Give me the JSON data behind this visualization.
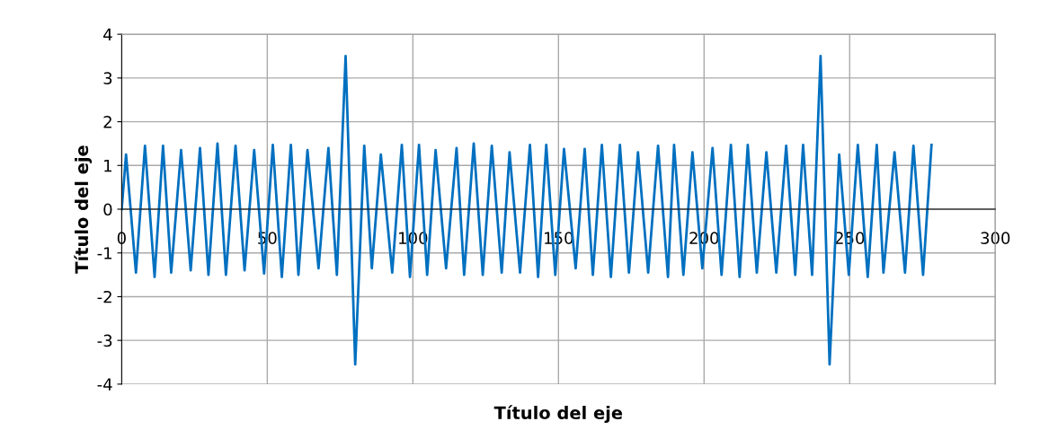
{
  "chart_data": {
    "type": "line",
    "xlabel": "Título del eje",
    "ylabel": "Título del eje",
    "xlim": [
      0,
      300
    ],
    "ylim": [
      -4,
      4
    ],
    "xticks": [
      0,
      50,
      100,
      150,
      200,
      250,
      300
    ],
    "yticks": [
      -4,
      -3,
      -2,
      -1,
      0,
      1,
      2,
      3,
      4
    ],
    "grid": true,
    "marker": "none",
    "line_style": "solid",
    "legend": false,
    "series": [
      {
        "color": "#0070c0",
        "x": [
          0,
          1.5,
          4.9,
          8,
          11.3,
          14.2,
          17,
          20.4,
          23.7,
          26.9,
          29.8,
          32.9,
          35.8,
          39.1,
          42.2,
          45.5,
          48.9,
          51.9,
          55,
          58.1,
          60.7,
          63.8,
          67.6,
          71,
          73.9,
          76.9,
          80.2,
          83.3,
          85.9,
          89,
          92.9,
          96.2,
          99,
          102.1,
          104.9,
          107.8,
          111.4,
          115,
          117.6,
          120.9,
          124,
          127.1,
          130.5,
          133.2,
          136.8,
          140.2,
          143,
          145.8,
          148.9,
          151.9,
          155.9,
          159,
          161.8,
          164.9,
          168,
          171.1,
          174.2,
          177.3,
          180.8,
          184.2,
          187.6,
          189.7,
          192.9,
          196,
          199.4,
          202.9,
          206,
          209.2,
          212.2,
          215,
          218.1,
          221.4,
          224.8,
          228.2,
          231.3,
          234,
          237.1,
          240,
          243.1,
          246.4,
          249.7,
          252.8,
          256.2,
          259.3,
          261.6,
          265.4,
          269,
          271.9,
          275.2,
          278.1
        ],
        "values": [
          0,
          1.25,
          -1.45,
          1.45,
          -1.55,
          1.45,
          -1.45,
          1.35,
          -1.4,
          1.4,
          -1.5,
          1.5,
          -1.5,
          1.45,
          -1.4,
          1.35,
          -1.47,
          1.47,
          -1.55,
          1.47,
          -1.5,
          1.35,
          -1.35,
          1.4,
          -1.5,
          3.5,
          -3.55,
          1.45,
          -1.35,
          1.25,
          -1.45,
          1.47,
          -1.55,
          1.47,
          -1.5,
          1.35,
          -1.35,
          1.4,
          -1.5,
          1.5,
          -1.5,
          1.45,
          -1.45,
          1.3,
          -1.45,
          1.47,
          -1.55,
          1.47,
          -1.5,
          1.38,
          -1.35,
          1.38,
          -1.5,
          1.47,
          -1.55,
          1.47,
          -1.45,
          1.3,
          -1.45,
          1.45,
          -1.55,
          1.47,
          -1.5,
          1.3,
          -1.35,
          1.4,
          -1.5,
          1.47,
          -1.55,
          1.47,
          -1.45,
          1.3,
          -1.45,
          1.45,
          -1.5,
          1.47,
          -1.5,
          3.5,
          -3.55,
          1.25,
          -1.5,
          1.47,
          -1.55,
          1.47,
          -1.45,
          1.3,
          -1.45,
          1.45,
          -1.5,
          1.47
        ]
      }
    ]
  }
}
